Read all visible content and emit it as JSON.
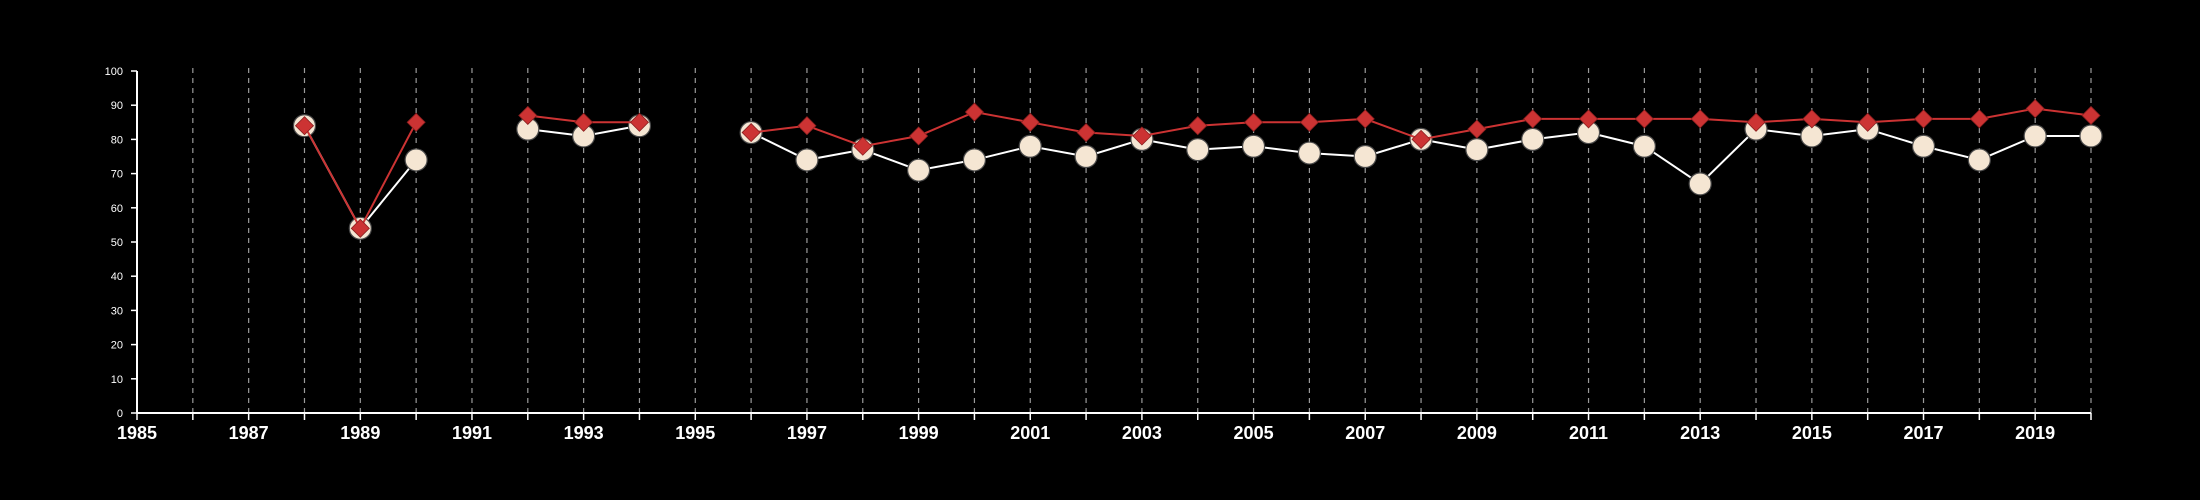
{
  "chart_data": {
    "type": "line",
    "title": "",
    "xlabel": "",
    "ylabel": "",
    "xlim": [
      1985,
      2020
    ],
    "ylim": [
      0,
      100
    ],
    "x_ticks": [
      1985,
      1987,
      1989,
      1991,
      1993,
      1995,
      1997,
      1999,
      2001,
      2003,
      2005,
      2007,
      2009,
      2011,
      2013,
      2015,
      2017,
      2019
    ],
    "x_tick_labels": [
      "1985",
      "1987",
      "1989",
      "1991",
      "1993",
      "1995",
      "1997",
      "1999",
      "2001",
      "2003",
      "2005",
      "2007",
      "2009",
      "2011",
      "2013",
      "2015",
      "2017",
      "2019"
    ],
    "y_ticks": [
      0,
      10,
      20,
      30,
      40,
      50,
      60,
      70,
      80,
      90,
      100
    ],
    "y_tick_labels": [
      "0",
      "10",
      "20",
      "30",
      "40",
      "50",
      "60",
      "70",
      "80",
      "90",
      "100"
    ],
    "vertical_grid": "dashed, every year 1986-2020",
    "legend": "none",
    "x": [
      1988,
      1989,
      1990,
      1992,
      1993,
      1994,
      1996,
      1997,
      1998,
      1999,
      2000,
      2001,
      2002,
      2003,
      2004,
      2005,
      2006,
      2007,
      2008,
      2009,
      2010,
      2011,
      2012,
      2013,
      2014,
      2015,
      2016,
      2017,
      2018,
      2019,
      2020
    ],
    "segments": [
      [
        1988,
        1990
      ],
      [
        1992,
        1994
      ],
      [
        1996,
        2020
      ]
    ],
    "series": [
      {
        "marker": "circle",
        "color": "#f5e6d3",
        "line_color": "#ffffff",
        "values": [
          84,
          54,
          74,
          83,
          81,
          84,
          82,
          74,
          77,
          71,
          74,
          78,
          75,
          80,
          77,
          78,
          76,
          75,
          80,
          77,
          80,
          82,
          78,
          67,
          83,
          81,
          83,
          78,
          74,
          81,
          81
        ]
      },
      {
        "marker": "diamond",
        "color": "#cc3333",
        "line_color": "#cc3333",
        "values": [
          84,
          54,
          85,
          87,
          85,
          85,
          82,
          84,
          78,
          81,
          88,
          85,
          82,
          81,
          84,
          85,
          85,
          86,
          80,
          83,
          86,
          86,
          86,
          86,
          85,
          86,
          85,
          86,
          86,
          89,
          87
        ]
      }
    ]
  }
}
